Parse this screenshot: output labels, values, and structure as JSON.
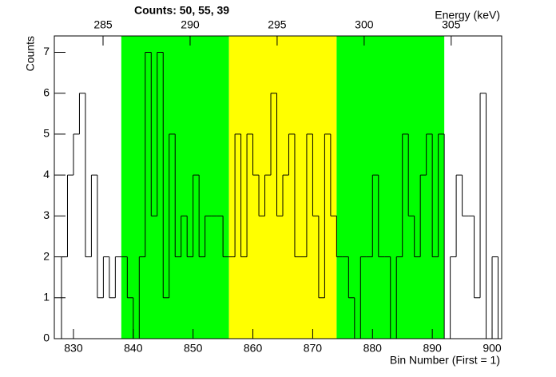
{
  "chart_data": {
    "type": "histogram",
    "title": "Counts:   50,   55,   39",
    "xlabel": "Bin Number (First = 1)",
    "ylabel": "Counts",
    "x2label": "Energy (keV)",
    "bins": [
      827,
      828,
      829,
      830,
      831,
      832,
      833,
      834,
      835,
      836,
      837,
      838,
      839,
      840,
      841,
      842,
      843,
      844,
      845,
      846,
      847,
      848,
      849,
      850,
      851,
      852,
      853,
      854,
      855,
      856,
      857,
      858,
      859,
      860,
      861,
      862,
      863,
      864,
      865,
      866,
      867,
      868,
      869,
      870,
      871,
      872,
      873,
      874,
      875,
      876,
      877,
      878,
      879,
      880,
      881,
      882,
      883,
      884,
      885,
      886,
      887,
      888,
      889,
      890,
      891,
      892,
      893,
      894,
      895,
      896,
      897,
      898,
      899,
      900,
      901
    ],
    "values": [
      0,
      2,
      4,
      5,
      6,
      2,
      4,
      1,
      2,
      1,
      2,
      2,
      1,
      0,
      2,
      7,
      3,
      7,
      1,
      5,
      2,
      3,
      2,
      4,
      2,
      3,
      3,
      3,
      2,
      2,
      5,
      2,
      5,
      4,
      3,
      4,
      6,
      3,
      4,
      5,
      2,
      2,
      5,
      3,
      1,
      5,
      3,
      2,
      2,
      1,
      0,
      2,
      2,
      4,
      2,
      2,
      0,
      2,
      5,
      3,
      2,
      4,
      5,
      2,
      5,
      0,
      2,
      4,
      3,
      3,
      1,
      6,
      0,
      2
    ],
    "color": "#000000",
    "regions": [
      {
        "xlim": [
          838,
          856
        ],
        "color": "#00ff00"
      },
      {
        "xlim": [
          856,
          874
        ],
        "color": "#ffff00"
      },
      {
        "xlim": [
          874,
          892
        ],
        "color": "#00ff00"
      }
    ],
    "xlim": [
      826.8,
      901.6
    ],
    "xticks": [
      830,
      840,
      850,
      860,
      870,
      880,
      890,
      900
    ],
    "ylim": [
      0,
      7.4
    ],
    "yticks": [
      0,
      1,
      2,
      3,
      4,
      5,
      6,
      7
    ],
    "x2lim": [
      282.2,
      307.9
    ],
    "x2ticks": [
      285,
      290,
      295,
      300,
      305
    ]
  }
}
